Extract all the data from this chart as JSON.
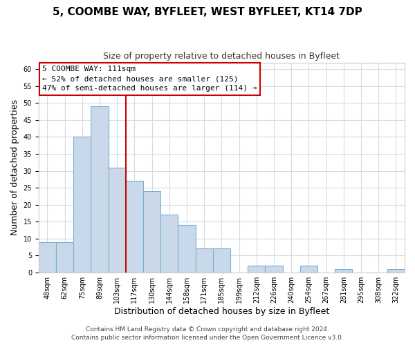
{
  "title": "5, COOMBE WAY, BYFLEET, WEST BYFLEET, KT14 7DP",
  "subtitle": "Size of property relative to detached houses in Byfleet",
  "xlabel": "Distribution of detached houses by size in Byfleet",
  "ylabel": "Number of detached properties",
  "bar_labels": [
    "48sqm",
    "62sqm",
    "75sqm",
    "89sqm",
    "103sqm",
    "117sqm",
    "130sqm",
    "144sqm",
    "158sqm",
    "171sqm",
    "185sqm",
    "199sqm",
    "212sqm",
    "226sqm",
    "240sqm",
    "254sqm",
    "267sqm",
    "281sqm",
    "295sqm",
    "308sqm",
    "322sqm"
  ],
  "bar_heights": [
    9,
    9,
    40,
    49,
    31,
    27,
    24,
    17,
    14,
    7,
    7,
    0,
    2,
    2,
    0,
    2,
    0,
    1,
    0,
    0,
    1
  ],
  "bar_color": "#c9d9ea",
  "bar_edgecolor": "#7bafd4",
  "vline_color": "#cc0000",
  "annotation_title": "5 COOMBE WAY: 111sqm",
  "annotation_line1": "← 52% of detached houses are smaller (125)",
  "annotation_line2": "47% of semi-detached houses are larger (114) →",
  "annotation_box_color": "white",
  "annotation_box_edgecolor": "#cc0000",
  "ylim": [
    0,
    62
  ],
  "yticks": [
    0,
    5,
    10,
    15,
    20,
    25,
    30,
    35,
    40,
    45,
    50,
    55,
    60
  ],
  "footer1": "Contains HM Land Registry data © Crown copyright and database right 2024.",
  "footer2": "Contains public sector information licensed under the Open Government Licence v3.0.",
  "title_fontsize": 11,
  "subtitle_fontsize": 9,
  "label_fontsize": 9,
  "tick_fontsize": 7,
  "footer_fontsize": 6.5,
  "grid_color": "#d0dce8"
}
